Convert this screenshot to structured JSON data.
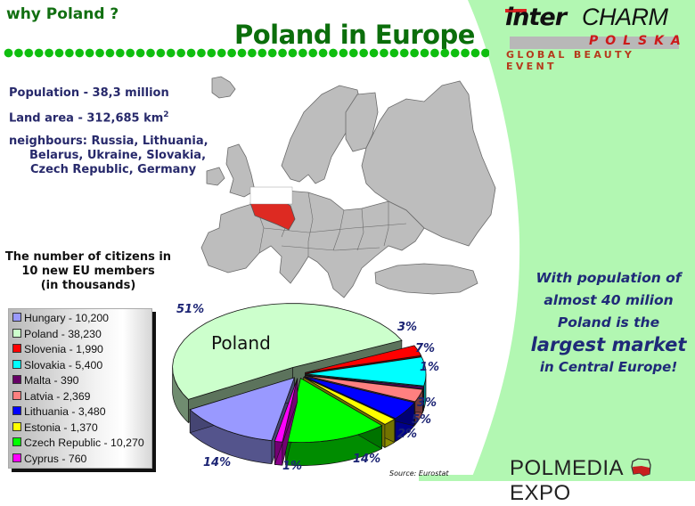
{
  "header": {
    "section_label": "why Poland ?",
    "title": "Poland in Europe"
  },
  "logo": {
    "brand_left": "inter",
    "brand_right": "CHARM",
    "sub": "POLSKA",
    "tagline": "GLOBAL BEAUTY EVENT"
  },
  "facts": {
    "population": "Population  - 38,3 million",
    "land_area": "Land area   - 312,685 km",
    "land_area_unit_sup": "2",
    "neighbours_line1": "neighbours: Russia, Lithuania,",
    "neighbours_line2": "Belarus, Ukraine, Slovakia,",
    "neighbours_line3": "Czech Republic, Germany"
  },
  "chart_caption": {
    "line1": "The number of citizens in",
    "line2": "10 new EU members",
    "line3": "(in thousands)"
  },
  "claim": {
    "line1": "With population of",
    "line2": "almost 40 milion",
    "line3": "Poland is the",
    "line4": "largest market",
    "line5": "in Central Europe!"
  },
  "footer": {
    "source": "Source: Eurostat",
    "brand_left": "POLMEDIA",
    "brand_right": "EXPO"
  },
  "colors": {
    "title_green": "#0b6e0b",
    "dot_green": "#0fbe0f",
    "panel_green": "#b2f7b2",
    "text_navy": "#27296b",
    "poland_red": "#dd2a22"
  },
  "chart_data": {
    "type": "pie",
    "title": "The number of citizens in 10 new EU members (in thousands)",
    "pie_label": "Poland",
    "categories": [
      "Hungary",
      "Poland",
      "Slovenia",
      "Slovakia",
      "Malta",
      "Latvia",
      "Lithuania",
      "Estonia",
      "Czech Republic",
      "Cyprus"
    ],
    "values": [
      10200,
      38230,
      1990,
      5400,
      390,
      2369,
      3480,
      1370,
      10270,
      760
    ],
    "percent_labels": [
      "14%",
      "51%",
      "3%",
      "7%",
      "1%",
      "3%",
      "5%",
      "2%",
      "14%",
      "1%"
    ],
    "legend": [
      {
        "label": "Hungary - 10,200",
        "color": "#9999ff"
      },
      {
        "label": "Poland - 38,230",
        "color": "#ccffcc"
      },
      {
        "label": "Slovenia - 1,990",
        "color": "#ff0000"
      },
      {
        "label": "Slovakia - 5,400",
        "color": "#00ffff"
      },
      {
        "label": "Malta - 390",
        "color": "#660066"
      },
      {
        "label": "Latvia - 2,369",
        "color": "#ff8080"
      },
      {
        "label": "Lithuania - 3,480",
        "color": "#0000ff"
      },
      {
        "label": "Estonia - 1,370",
        "color": "#ffff00"
      },
      {
        "label": "Czech Republic - 10,270",
        "color": "#00ff00"
      },
      {
        "label": "Cyprus - 760",
        "color": "#ff00ff"
      }
    ],
    "legend_position": "left",
    "style": "3d-exploded",
    "source": "Source: Eurostat"
  }
}
